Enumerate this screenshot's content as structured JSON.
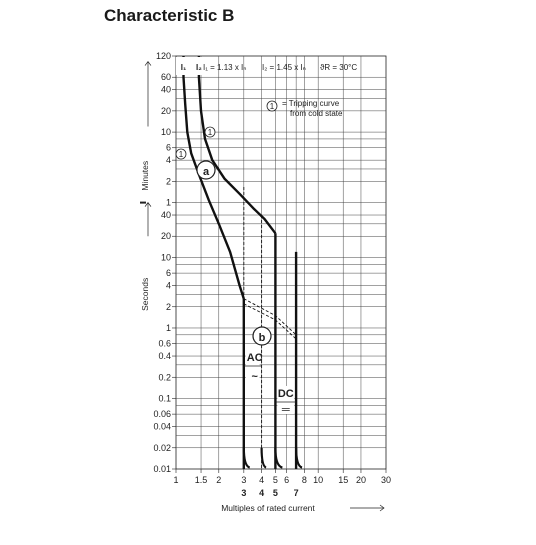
{
  "title": "Characteristic B",
  "chart_data": {
    "type": "line",
    "title": "Characteristic B",
    "xlabel": "Multiples of rated current",
    "x_scale": "log",
    "xlim": [
      1,
      30
    ],
    "x_ticks": [
      {
        "v": 1,
        "label": "1"
      },
      {
        "v": 1.5,
        "label": "1.5"
      },
      {
        "v": 2,
        "label": "2"
      },
      {
        "v": 3,
        "label": "3"
      },
      {
        "v": 4,
        "label": "4"
      },
      {
        "v": 5,
        "label": "5"
      },
      {
        "v": 6,
        "label": "6"
      },
      {
        "v": 8,
        "label": "8"
      },
      {
        "v": 10,
        "label": "10"
      },
      {
        "v": 15,
        "label": "15"
      },
      {
        "v": 20,
        "label": "20"
      },
      {
        "v": 30,
        "label": "30"
      }
    ],
    "x_subticks": [
      {
        "v": 3,
        "label": "3"
      },
      {
        "v": 4,
        "label": "4"
      },
      {
        "v": 5,
        "label": "5"
      },
      {
        "v": 7,
        "label": "7"
      }
    ],
    "y_unit": "seconds",
    "y_scale": "log",
    "ylim_seconds": [
      0.01,
      7200
    ],
    "y_ticks_minutes": [
      {
        "v": 120,
        "label": "120"
      },
      {
        "v": 60,
        "label": "60"
      },
      {
        "v": 40,
        "label": "40"
      },
      {
        "v": 20,
        "label": "20"
      },
      {
        "v": 10,
        "label": "10"
      },
      {
        "v": 6,
        "label": "6"
      },
      {
        "v": 4,
        "label": "4"
      },
      {
        "v": 2,
        "label": "2"
      },
      {
        "v": 1,
        "label": "1"
      }
    ],
    "y_ticks_seconds": [
      {
        "v": 40,
        "label": "40"
      },
      {
        "v": 20,
        "label": "20"
      },
      {
        "v": 10,
        "label": "10"
      },
      {
        "v": 6,
        "label": "6"
      },
      {
        "v": 4,
        "label": "4"
      },
      {
        "v": 2,
        "label": "2"
      },
      {
        "v": 1,
        "label": "1"
      },
      {
        "v": 0.6,
        "label": "0.6"
      },
      {
        "v": 0.4,
        "label": "0.4"
      },
      {
        "v": 0.2,
        "label": "0.2"
      },
      {
        "v": 0.1,
        "label": "0.1"
      },
      {
        "v": 0.06,
        "label": "0.06"
      },
      {
        "v": 0.04,
        "label": "0.04"
      },
      {
        "v": 0.02,
        "label": "0.02"
      },
      {
        "v": 0.01,
        "label": "0.01"
      }
    ],
    "y_label_minutes": "Minutes",
    "y_label_seconds": "Seconds",
    "grid": true,
    "series": [
      {
        "style": "solid",
        "points": [
          [
            1.13,
            7200
          ],
          [
            1.13,
            3600
          ],
          [
            1.16,
            1500
          ],
          [
            1.2,
            600
          ],
          [
            1.28,
            300
          ],
          [
            1.45,
            150
          ],
          [
            1.7,
            65
          ],
          [
            2.0,
            30
          ],
          [
            2.4,
            12
          ],
          [
            2.8,
            4
          ],
          [
            3.0,
            2.6
          ]
        ]
      },
      {
        "style": "solid",
        "points": [
          [
            1.45,
            7200
          ],
          [
            1.45,
            3600
          ],
          [
            1.5,
            1200
          ],
          [
            1.6,
            480
          ],
          [
            1.8,
            240
          ],
          [
            2.2,
            130
          ],
          [
            2.8,
            80
          ],
          [
            3.5,
            50
          ],
          [
            4.2,
            35
          ],
          [
            5.0,
            22
          ]
        ]
      },
      {
        "style": "solid",
        "points": [
          [
            3.0,
            2.6
          ],
          [
            3.0,
            0.01
          ]
        ]
      },
      {
        "style": "solid",
        "points": [
          [
            5.0,
            22
          ],
          [
            5.0,
            0.01
          ]
        ]
      },
      {
        "style": "solid",
        "points": [
          [
            7.0,
            12
          ],
          [
            7.0,
            0.01
          ]
        ]
      },
      {
        "style": "dashed",
        "points": [
          [
            3.0,
            100
          ],
          [
            3.0,
            2.6
          ]
        ]
      },
      {
        "style": "dashed",
        "points": [
          [
            4.0,
            40
          ],
          [
            4.0,
            0.01
          ]
        ]
      },
      {
        "style": "dashed",
        "points": [
          [
            3.0,
            2.6
          ],
          [
            5.0,
            1.5
          ],
          [
            7.0,
            0.8
          ]
        ]
      },
      {
        "style": "dashed",
        "points": [
          [
            3.0,
            2.2
          ],
          [
            5.0,
            1.3
          ],
          [
            7.0,
            0.7
          ]
        ]
      }
    ],
    "annotations": [
      {
        "text": "I₁",
        "kind": "header"
      },
      {
        "text": "I₂",
        "kind": "header"
      },
      {
        "text": "I₁ = 1.13 x Iₙ",
        "kind": "header"
      },
      {
        "text": "I₂ = 1.45 x Iₙ",
        "kind": "header"
      },
      {
        "text": "ϑR = 30°C",
        "kind": "header"
      },
      {
        "text": "1",
        "kind": "circled"
      },
      {
        "text": "= Tripping curve",
        "kind": "legend"
      },
      {
        "text": "from cold state",
        "kind": "legend"
      },
      {
        "text": "a",
        "kind": "region"
      },
      {
        "text": "b",
        "kind": "region"
      },
      {
        "text": "AC",
        "kind": "label"
      },
      {
        "text": "~",
        "kind": "symbol"
      },
      {
        "text": "DC",
        "kind": "label"
      },
      {
        "text": "═",
        "kind": "symbol"
      }
    ]
  }
}
